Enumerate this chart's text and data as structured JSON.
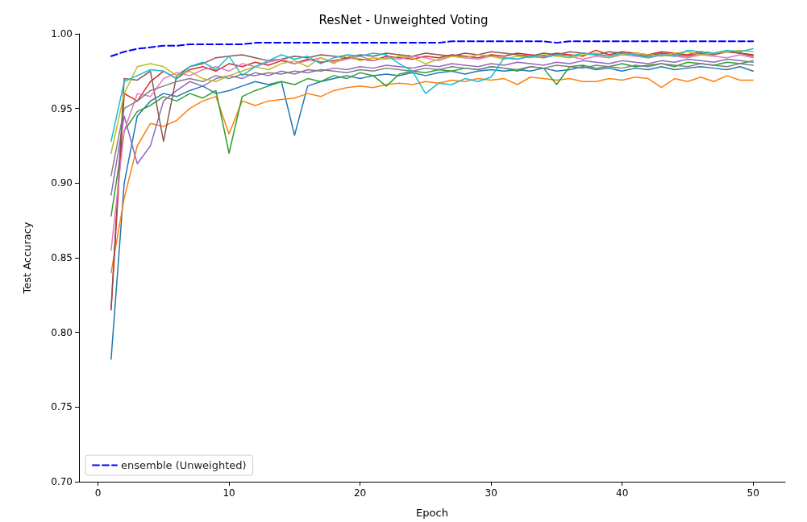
{
  "chart_data": {
    "type": "line",
    "title": "ResNet - Unweighted Voting",
    "xlabel": "Epoch",
    "ylabel": "Test Accuracy",
    "x": [
      1,
      2,
      3,
      4,
      5,
      6,
      7,
      8,
      9,
      10,
      11,
      12,
      13,
      14,
      15,
      16,
      17,
      18,
      19,
      20,
      21,
      22,
      23,
      24,
      25,
      26,
      27,
      28,
      29,
      30,
      31,
      32,
      33,
      34,
      35,
      36,
      37,
      38,
      39,
      40,
      41,
      42,
      43,
      44,
      45,
      46,
      47,
      48,
      49,
      50
    ],
    "xlim": [
      -1.45,
      52.45
    ],
    "xticks": [
      0,
      10,
      20,
      30,
      40,
      50
    ],
    "ylim": [
      0.7,
      1.0
    ],
    "yticks": [
      {
        "value": 0.7,
        "label": "0.70"
      },
      {
        "value": 0.75,
        "label": "0.75"
      },
      {
        "value": 0.8,
        "label": "0.80"
      },
      {
        "value": 0.85,
        "label": "0.85"
      },
      {
        "value": 0.9,
        "label": "0.90"
      },
      {
        "value": 0.95,
        "label": "0.95"
      },
      {
        "value": 1.0,
        "label": "1.00"
      }
    ],
    "grid": false,
    "legend": "bottom left",
    "marker": "none",
    "series": [
      {
        "color": "#1f77b4",
        "values": [
          0.782,
          0.9,
          0.945,
          0.955,
          0.96,
          0.958,
          0.962,
          0.965,
          0.96,
          0.962,
          0.965,
          0.968,
          0.966,
          0.968,
          0.932,
          0.965,
          0.968,
          0.97,
          0.972,
          0.97,
          0.972,
          0.973,
          0.972,
          0.974,
          0.972,
          0.974,
          0.975,
          0.973,
          0.975,
          0.976,
          0.975,
          0.976,
          0.975,
          0.977,
          0.975,
          0.976,
          0.978,
          0.976,
          0.977,
          0.975,
          0.977,
          0.976,
          0.978,
          0.976,
          0.977,
          0.978,
          0.977,
          0.976,
          0.978,
          0.975
        ]
      },
      {
        "color": "#ff7f0e",
        "values": [
          0.84,
          0.89,
          0.925,
          0.94,
          0.938,
          0.942,
          0.95,
          0.955,
          0.958,
          0.933,
          0.955,
          0.952,
          0.955,
          0.956,
          0.957,
          0.96,
          0.958,
          0.962,
          0.964,
          0.965,
          0.964,
          0.966,
          0.967,
          0.966,
          0.968,
          0.967,
          0.969,
          0.968,
          0.97,
          0.969,
          0.97,
          0.966,
          0.971,
          0.97,
          0.969,
          0.97,
          0.968,
          0.968,
          0.97,
          0.969,
          0.971,
          0.97,
          0.964,
          0.97,
          0.968,
          0.971,
          0.968,
          0.972,
          0.969,
          0.969
        ]
      },
      {
        "color": "#2ca02c",
        "values": [
          0.878,
          0.935,
          0.948,
          0.952,
          0.958,
          0.955,
          0.96,
          0.957,
          0.962,
          0.92,
          0.958,
          0.962,
          0.965,
          0.968,
          0.966,
          0.97,
          0.968,
          0.972,
          0.97,
          0.974,
          0.972,
          0.965,
          0.973,
          0.975,
          0.974,
          0.976,
          0.975,
          0.977,
          0.976,
          0.978,
          0.977,
          0.975,
          0.978,
          0.977,
          0.966,
          0.978,
          0.979,
          0.977,
          0.978,
          0.98,
          0.978,
          0.979,
          0.98,
          0.978,
          0.981,
          0.98,
          0.979,
          0.981,
          0.98,
          0.982
        ]
      },
      {
        "color": "#d62728",
        "values": [
          0.815,
          0.96,
          0.955,
          0.968,
          0.975,
          0.97,
          0.976,
          0.978,
          0.975,
          0.98,
          0.978,
          0.981,
          0.979,
          0.982,
          0.98,
          0.983,
          0.981,
          0.982,
          0.984,
          0.983,
          0.982,
          0.985,
          0.984,
          0.983,
          0.985,
          0.984,
          0.986,
          0.985,
          0.984,
          0.986,
          0.985,
          0.987,
          0.986,
          0.985,
          0.987,
          0.986,
          0.985,
          0.989,
          0.986,
          0.988,
          0.987,
          0.986,
          0.988,
          0.987,
          0.986,
          0.988,
          0.987,
          0.988,
          0.987,
          0.986
        ]
      },
      {
        "color": "#9467bd",
        "values": [
          0.892,
          0.945,
          0.913,
          0.925,
          0.955,
          0.962,
          0.968,
          0.965,
          0.97,
          0.972,
          0.97,
          0.974,
          0.972,
          0.975,
          0.973,
          0.976,
          0.975,
          0.977,
          0.976,
          0.978,
          0.977,
          0.979,
          0.978,
          0.977,
          0.979,
          0.978,
          0.98,
          0.979,
          0.978,
          0.98,
          0.979,
          0.981,
          0.98,
          0.979,
          0.981,
          0.98,
          0.982,
          0.981,
          0.98,
          0.982,
          0.981,
          0.98,
          0.982,
          0.981,
          0.983,
          0.982,
          0.981,
          0.983,
          0.982,
          0.981
        ]
      },
      {
        "color": "#8c564b",
        "values": [
          0.816,
          0.97,
          0.969,
          0.975,
          0.928,
          0.972,
          0.978,
          0.98,
          0.984,
          0.985,
          0.986,
          0.984,
          0.982,
          0.983,
          0.985,
          0.984,
          0.986,
          0.985,
          0.984,
          0.986,
          0.985,
          0.987,
          0.986,
          0.985,
          0.987,
          0.986,
          0.985,
          0.987,
          0.986,
          0.988,
          0.987,
          0.986,
          0.985,
          0.987,
          0.986,
          0.988,
          0.987,
          0.986,
          0.988,
          0.987,
          0.986,
          0.985,
          0.987,
          0.986,
          0.985,
          0.987,
          0.986,
          0.988,
          0.987,
          0.985
        ]
      },
      {
        "color": "#e377c2",
        "values": [
          0.855,
          0.935,
          0.96,
          0.958,
          0.97,
          0.974,
          0.972,
          0.976,
          0.978,
          0.975,
          0.98,
          0.978,
          0.981,
          0.983,
          0.98,
          0.982,
          0.984,
          0.981,
          0.983,
          0.985,
          0.982,
          0.984,
          0.983,
          0.985,
          0.984,
          0.982,
          0.985,
          0.984,
          0.983,
          0.985,
          0.984,
          0.983,
          0.985,
          0.984,
          0.986,
          0.985,
          0.983,
          0.985,
          0.984,
          0.986,
          0.985,
          0.984,
          0.986,
          0.985,
          0.984,
          0.986,
          0.985,
          0.984,
          0.986,
          0.984
        ]
      },
      {
        "color": "#7f7f7f",
        "values": [
          0.905,
          0.95,
          0.955,
          0.962,
          0.965,
          0.968,
          0.97,
          0.968,
          0.972,
          0.97,
          0.973,
          0.972,
          0.974,
          0.973,
          0.975,
          0.974,
          0.976,
          0.975,
          0.974,
          0.976,
          0.975,
          0.977,
          0.976,
          0.975,
          0.977,
          0.976,
          0.978,
          0.977,
          0.976,
          0.978,
          0.977,
          0.976,
          0.978,
          0.977,
          0.979,
          0.978,
          0.977,
          0.979,
          0.978,
          0.977,
          0.979,
          0.978,
          0.98,
          0.979,
          0.978,
          0.98,
          0.979,
          0.978,
          0.98,
          0.979
        ]
      },
      {
        "color": "#bcbd22",
        "values": [
          0.92,
          0.96,
          0.978,
          0.98,
          0.978,
          0.972,
          0.975,
          0.97,
          0.968,
          0.972,
          0.975,
          0.978,
          0.976,
          0.98,
          0.982,
          0.978,
          0.984,
          0.98,
          0.986,
          0.982,
          0.984,
          0.983,
          0.985,
          0.984,
          0.98,
          0.983,
          0.985,
          0.984,
          0.986,
          0.985,
          0.983,
          0.985,
          0.984,
          0.986,
          0.985,
          0.984,
          0.986,
          0.987,
          0.985,
          0.986,
          0.987,
          0.986,
          0.985,
          0.987,
          0.988,
          0.986,
          0.987,
          0.988,
          0.989,
          0.988
        ]
      },
      {
        "color": "#17becf",
        "values": [
          0.928,
          0.968,
          0.972,
          0.976,
          0.975,
          0.97,
          0.978,
          0.981,
          0.976,
          0.985,
          0.972,
          0.978,
          0.982,
          0.986,
          0.983,
          0.985,
          0.98,
          0.984,
          0.986,
          0.985,
          0.987,
          0.986,
          0.98,
          0.975,
          0.96,
          0.967,
          0.966,
          0.97,
          0.968,
          0.971,
          0.984,
          0.983,
          0.985,
          0.984,
          0.986,
          0.985,
          0.987,
          0.986,
          0.985,
          0.987,
          0.986,
          0.984,
          0.986,
          0.985,
          0.989,
          0.988,
          0.987,
          0.989,
          0.988,
          0.99
        ]
      },
      {
        "name": "ensemble (Unweighted)",
        "color": "#0000ff",
        "line_style": "dashed",
        "values": [
          0.985,
          0.988,
          0.99,
          0.991,
          0.992,
          0.992,
          0.993,
          0.993,
          0.993,
          0.993,
          0.993,
          0.994,
          0.994,
          0.994,
          0.994,
          0.994,
          0.994,
          0.994,
          0.994,
          0.994,
          0.994,
          0.994,
          0.994,
          0.994,
          0.994,
          0.994,
          0.995,
          0.995,
          0.995,
          0.995,
          0.995,
          0.995,
          0.995,
          0.995,
          0.994,
          0.995,
          0.995,
          0.995,
          0.995,
          0.995,
          0.995,
          0.995,
          0.995,
          0.995,
          0.995,
          0.995,
          0.995,
          0.995,
          0.995,
          0.995
        ]
      }
    ]
  }
}
